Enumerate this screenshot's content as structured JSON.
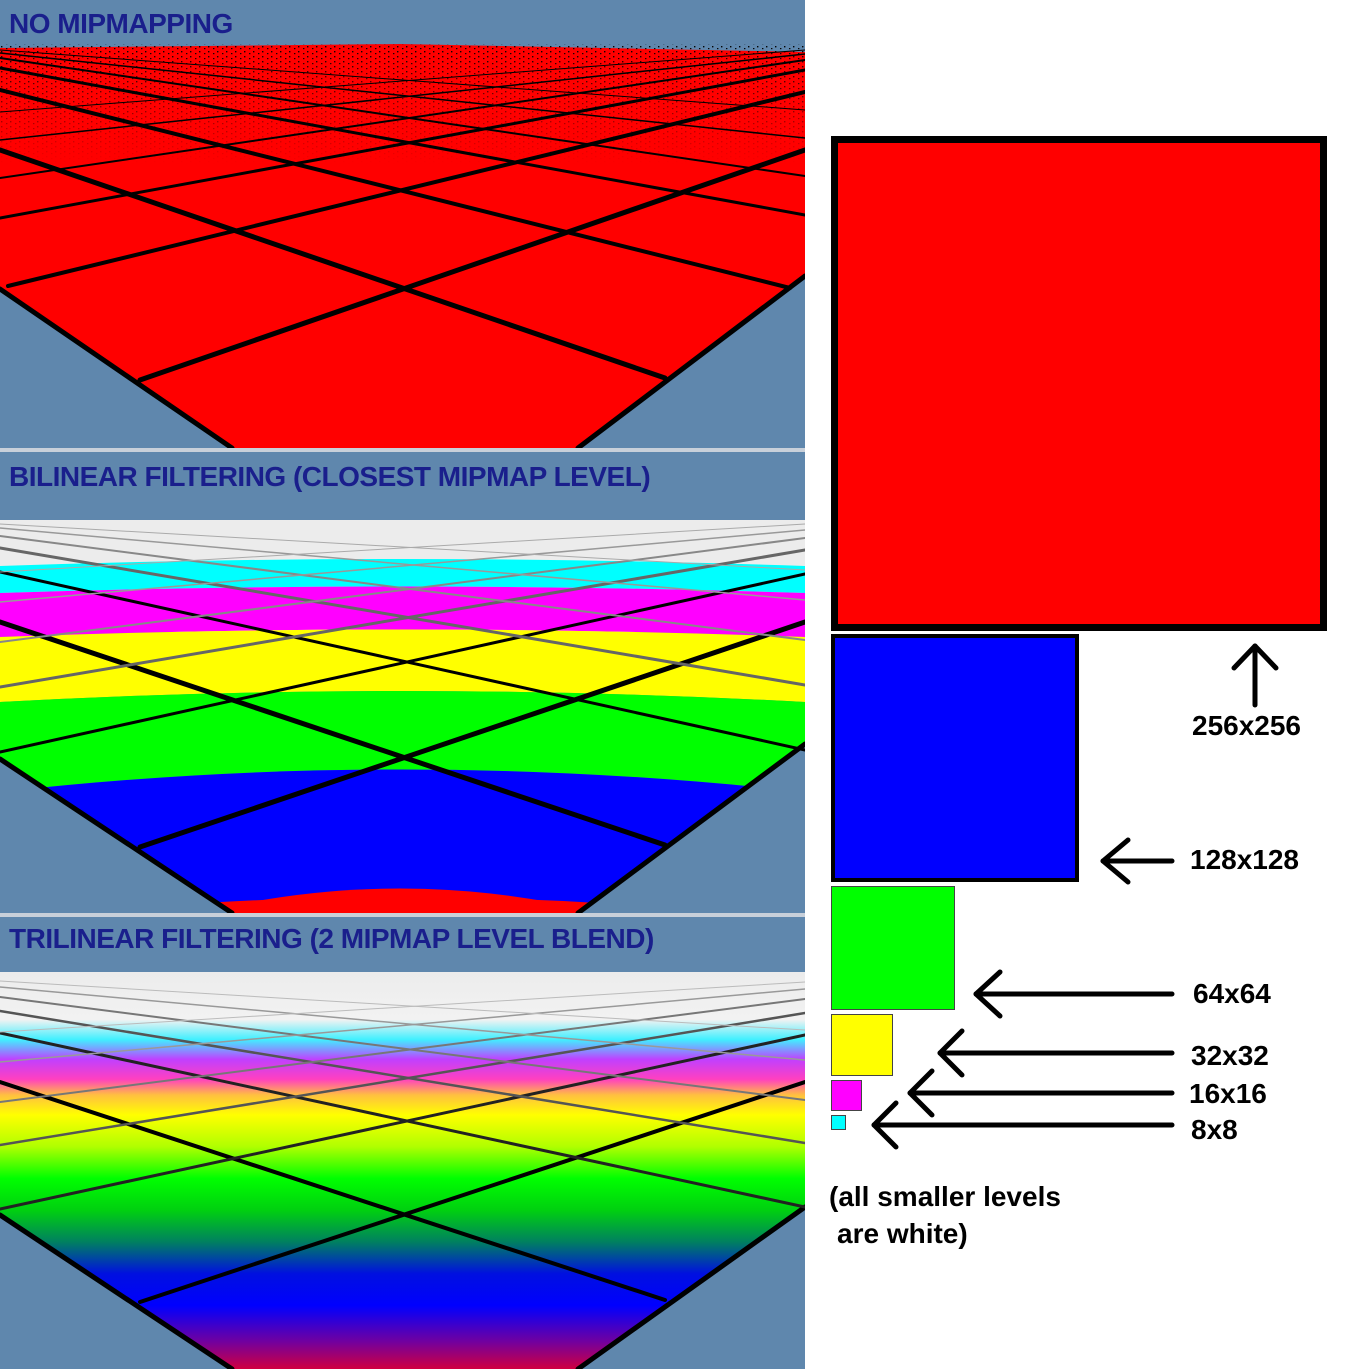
{
  "panels": [
    {
      "title": "NO MIPMAPPING"
    },
    {
      "title": "BILINEAR FILTERING (CLOSEST MIPMAP LEVEL)"
    },
    {
      "title": "TRILINEAR FILTERING (2 MIPMAP LEVEL BLEND)"
    }
  ],
  "mip_levels": [
    {
      "label": "256x256",
      "color": "#ff0000"
    },
    {
      "label": "128x128",
      "color": "#0000ff"
    },
    {
      "label": "64x64",
      "color": "#00ff00"
    },
    {
      "label": "32x32",
      "color": "#ffff00"
    },
    {
      "label": "16x16",
      "color": "#ff00ff"
    },
    {
      "label": "8x8",
      "color": "#00ffff"
    }
  ],
  "note_line1": "(all smaller levels",
  "note_line2": "are white)",
  "colors": {
    "background": "#5f87ad",
    "title": "#1a1f8c",
    "smaller_levels": "#ffffff"
  }
}
